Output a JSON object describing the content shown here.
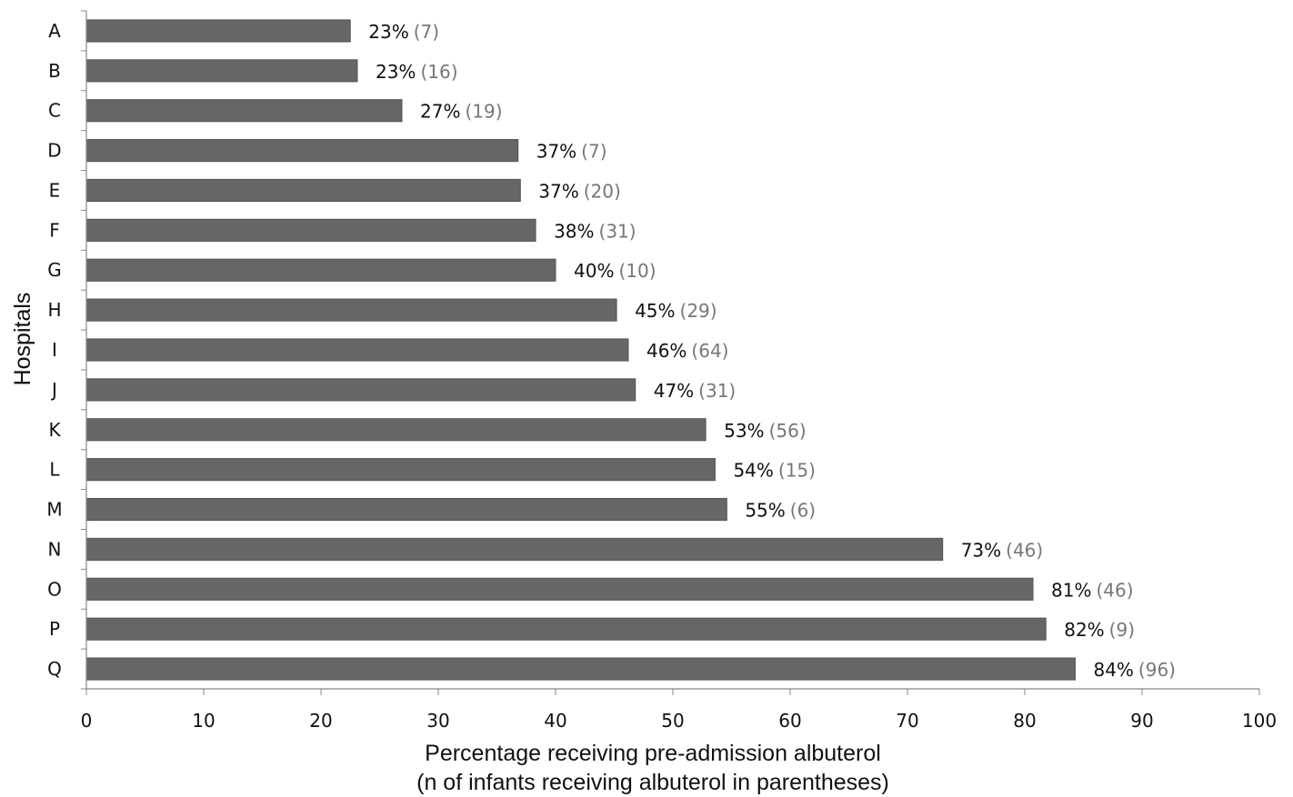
{
  "chart_data": {
    "type": "bar",
    "orientation": "horizontal",
    "categories": [
      "A",
      "B",
      "C",
      "D",
      "E",
      "F",
      "G",
      "H",
      "I",
      "J",
      "K",
      "L",
      "M",
      "N",
      "O",
      "P",
      "Q"
    ],
    "values": [
      22.5,
      23.1,
      26.9,
      36.8,
      37.0,
      38.3,
      40.0,
      45.2,
      46.2,
      46.8,
      52.8,
      53.6,
      54.6,
      73.0,
      80.7,
      81.8,
      84.3
    ],
    "labels_pct": [
      "23%",
      "23%",
      "27%",
      "37%",
      "37%",
      "38%",
      "40%",
      "45%",
      "46%",
      "47%",
      "53%",
      "54%",
      "55%",
      "73%",
      "81%",
      "82%",
      "84%"
    ],
    "labels_n": [
      "(7)",
      "(16)",
      "(19)",
      "(7)",
      "(20)",
      "(31)",
      "(10)",
      "(29)",
      "(64)",
      "(31)",
      "(56)",
      "(15)",
      "(6)",
      "(46)",
      "(46)",
      "(9)",
      "(96)"
    ],
    "xlim": [
      0,
      100
    ],
    "xticks": [
      0,
      10,
      20,
      30,
      40,
      50,
      60,
      70,
      80,
      90,
      100
    ],
    "xlabel_line1": "Percentage receiving pre-admission albuterol",
    "xlabel_line2": "(n of infants receiving albuterol in parentheses)",
    "ylabel": "Hospitals",
    "grid": false,
    "legend": "none",
    "bar_color": "#666666",
    "n_label_color": "#777777"
  }
}
